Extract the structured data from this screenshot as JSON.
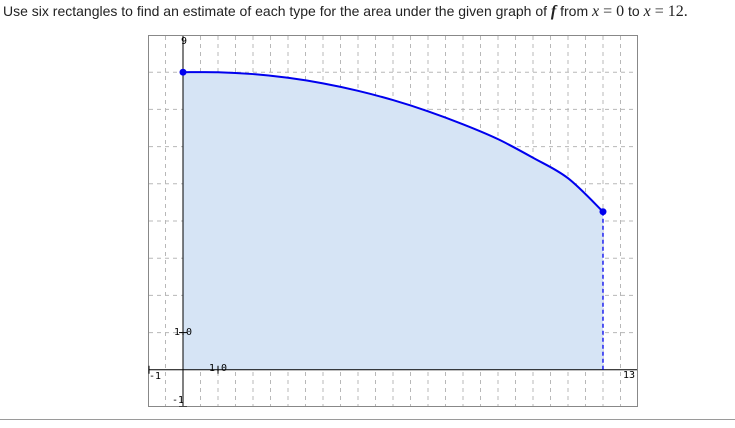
{
  "prompt": {
    "text_before": "Use six rectangles to find an estimate of each type for the area under the given graph of ",
    "function_name": "f",
    "text_from": " from ",
    "var1": "x",
    "eq1": " = ",
    "start_value": "0",
    "text_to": " to ",
    "var2": "x",
    "eq2": " = ",
    "end_value": "12."
  },
  "colors": {
    "curve": "#0000ee",
    "fill": "#d6e4f5",
    "grid": "#b8b8b8",
    "frame": "#888888"
  },
  "chart_data": {
    "type": "area",
    "title": "",
    "xlabel": "",
    "ylabel": "",
    "xlim": [
      -1,
      13
    ],
    "ylim": [
      -1,
      9
    ],
    "grid": true,
    "tick_labels": {
      "y_top": "9",
      "y_one": "1.0",
      "y_neg": "-1",
      "x_one": "1.0",
      "x_neg": "-1",
      "x_right": "13"
    },
    "series": [
      {
        "x": [
          0,
          1,
          2,
          3,
          4,
          5,
          6,
          7,
          8,
          9,
          10,
          11,
          12
        ],
        "y": [
          8.0,
          8.0,
          7.95,
          7.85,
          7.7,
          7.5,
          7.25,
          6.95,
          6.6,
          6.2,
          5.7,
          5.15,
          4.25
        ]
      }
    ],
    "endpoints": [
      [
        0,
        8.0
      ],
      [
        12,
        4.25
      ]
    ],
    "fill_from": 0,
    "fill_to": 12
  }
}
